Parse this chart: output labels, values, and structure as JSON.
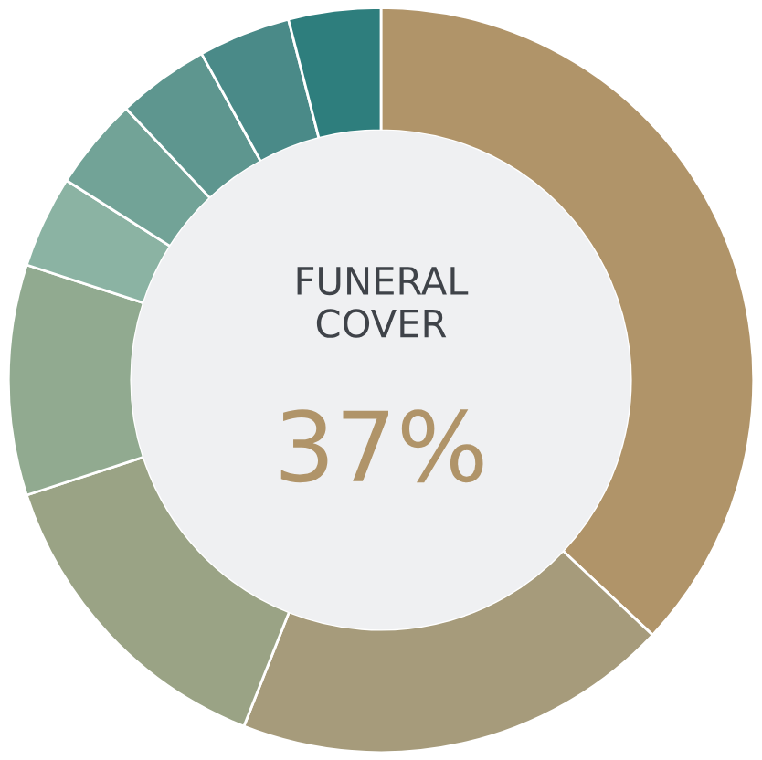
{
  "chart_data": {
    "type": "donut",
    "title": "FUNERAL\nCOVER",
    "annotations": [
      "37%"
    ],
    "categories": [
      null,
      null,
      null,
      null,
      null,
      null,
      null,
      null,
      null
    ],
    "values": [
      37,
      19,
      14,
      10,
      4,
      4,
      4,
      4,
      4
    ],
    "colors": [
      "#b09469",
      "#a69b7b",
      "#9aa385",
      "#91aa90",
      "#8bb3a3",
      "#72a397",
      "#5e968f",
      "#4a8a88",
      "#2e7e7d"
    ]
  }
}
